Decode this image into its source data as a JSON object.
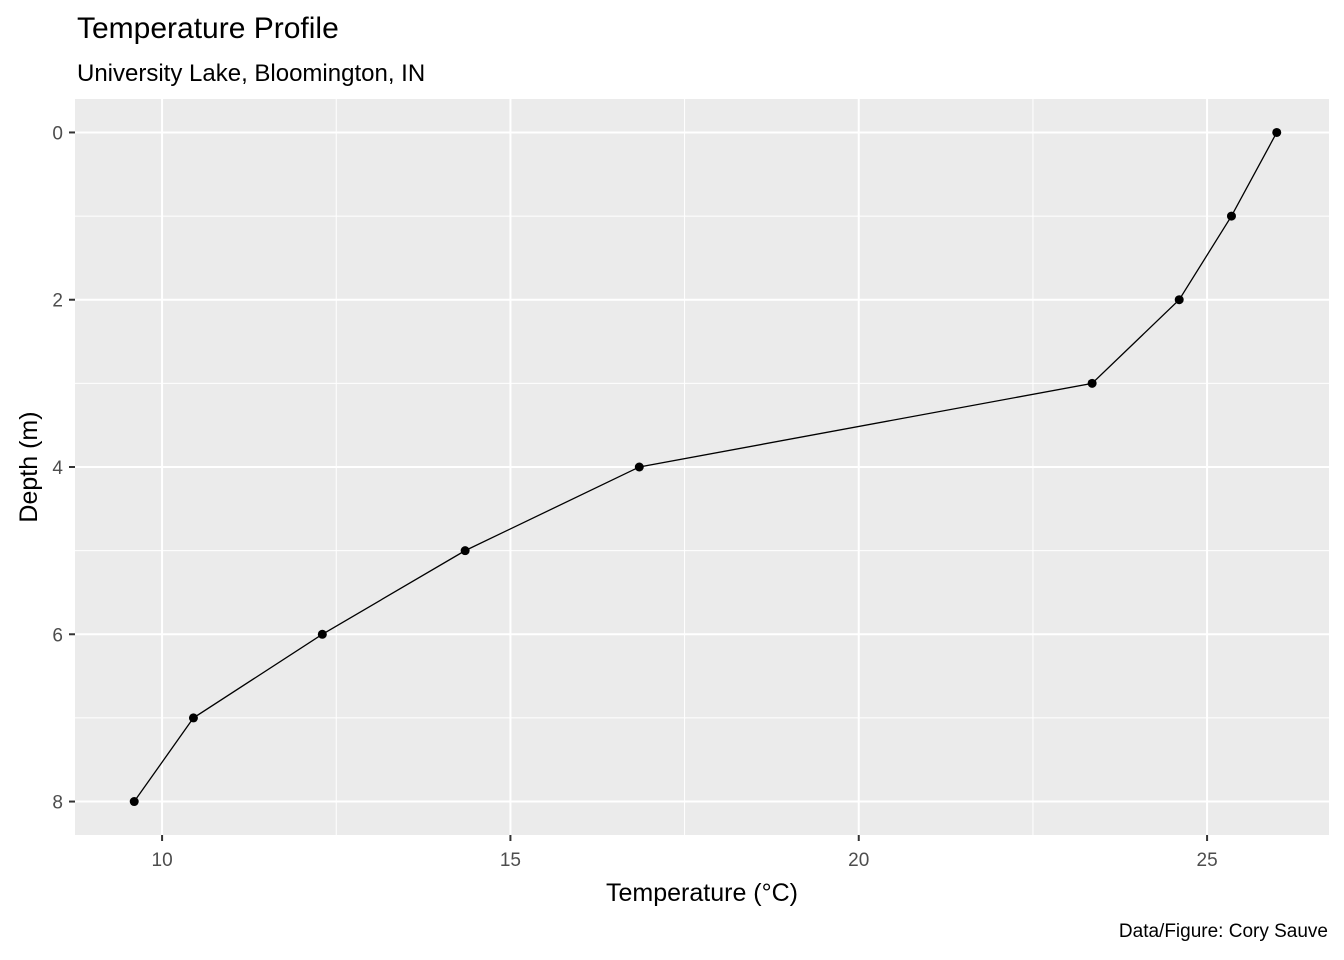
{
  "chart_data": {
    "type": "line",
    "title": "Temperature Profile",
    "subtitle": "University Lake, Bloomington, IN",
    "caption": "Data/Figure: Cory Sauve",
    "xlabel": "Temperature (°C)",
    "ylabel": "Depth (m)",
    "xlim": [
      8.75,
      26.75
    ],
    "ylim": [
      8.4,
      -0.4
    ],
    "y_reversed": true,
    "x_ticks": [
      10,
      15,
      20,
      25
    ],
    "y_ticks": [
      0,
      2,
      4,
      6,
      8
    ],
    "grid": true,
    "x": [
      26.0,
      25.35,
      24.6,
      23.35,
      16.85,
      14.35,
      12.3,
      10.45,
      9.6
    ],
    "y": [
      0,
      1,
      2,
      3,
      4,
      5,
      6,
      7,
      8
    ],
    "colors": {
      "panel": "#ebebeb",
      "grid": "#ffffff",
      "series": "#000000",
      "tick": "#4d4d4d"
    }
  }
}
